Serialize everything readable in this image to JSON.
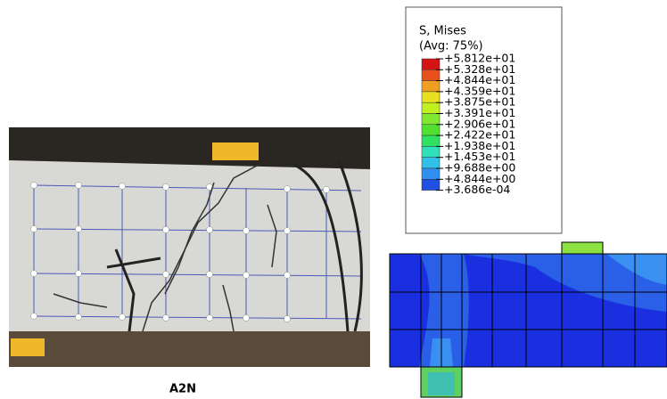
{
  "caption": "A2N",
  "legend": {
    "title": "S, Mises",
    "subtitle": "(Avg: 75%)",
    "entries": [
      {
        "label": "+5.812e+01",
        "color": "#d41414"
      },
      {
        "label": "+5.328e+01",
        "color": "#e8501c"
      },
      {
        "label": "+4.844e+01",
        "color": "#f0a020"
      },
      {
        "label": "+4.359e+01",
        "color": "#e8e020"
      },
      {
        "label": "+3.875e+01",
        "color": "#c0f020"
      },
      {
        "label": "+3.391e+01",
        "color": "#80e830"
      },
      {
        "label": "+2.906e+01",
        "color": "#50e030"
      },
      {
        "label": "+2.422e+01",
        "color": "#30e060"
      },
      {
        "label": "+1.938e+01",
        "color": "#30e0b8"
      },
      {
        "label": "+1.453e+01",
        "color": "#30c0e8"
      },
      {
        "label": "+9.688e+00",
        "color": "#3090f0"
      },
      {
        "label": "+4.844e+00",
        "color": "#2050e0"
      },
      {
        "label": "+3.686e-04",
        "color": "#1020e0"
      }
    ]
  }
}
